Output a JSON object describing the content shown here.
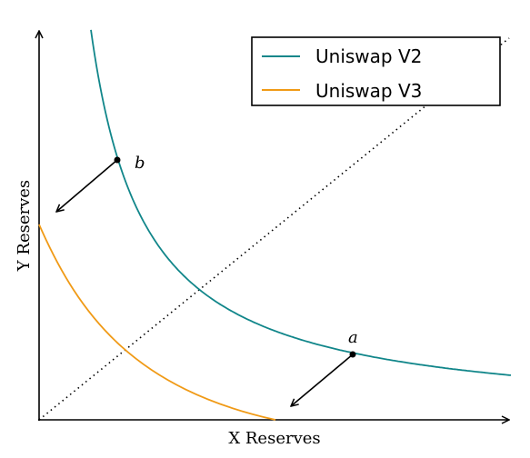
{
  "x_axis_label": "X Reserves",
  "y_axis_label": "Y Reserves",
  "legend": [
    {
      "name": "Uniswap V2",
      "color": "#11868a"
    },
    {
      "name": "Uniswap V3",
      "color": "#f09a16"
    }
  ],
  "points": [
    {
      "label": "a"
    },
    {
      "label": "b"
    }
  ]
}
